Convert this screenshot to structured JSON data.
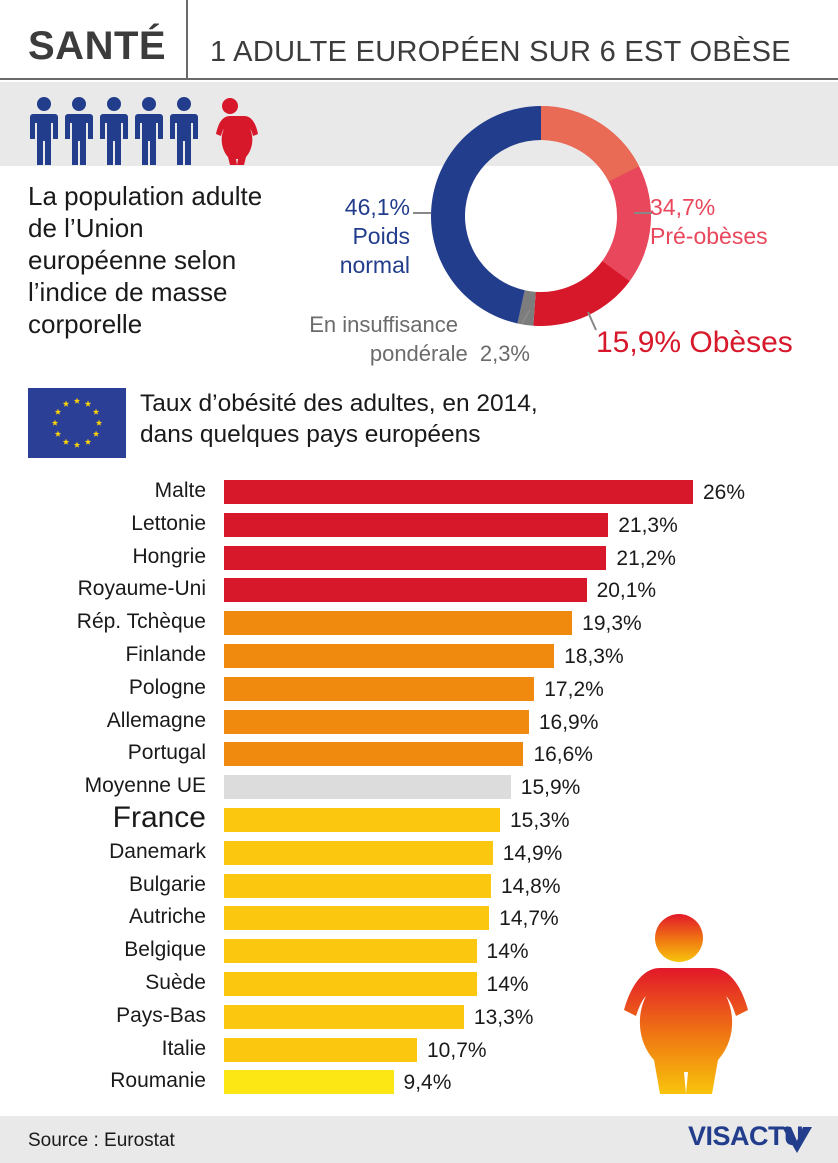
{
  "header": {
    "category": "SANTÉ",
    "title": "1 ADULTE EUROPÉEN SUR 6 EST OBÈSE"
  },
  "population": {
    "intro": "La population adulte de l’Union européenne selon l’indice de masse corporelle",
    "normal_pct": "46,1%",
    "normal_label": "Poids normal",
    "pre_pct": "34,7%",
    "pre_label": "Pré-obèses",
    "under_label": "En insuffisance",
    "under_label2": "pondérale",
    "under_pct": "2,3%",
    "obese_pct": "15,9",
    "obese_label": "% Obèses"
  },
  "bars_section": {
    "title_line1": "Taux d’obésité des adultes, en 2014,",
    "title_line2": "dans quelques pays européens"
  },
  "colors": {
    "normal": "#223d8c",
    "pre_obese": "#e8475c",
    "pre_obese_top": "#e96a55",
    "obese": "#d7182a",
    "under": "#7d7d7d",
    "red": "#d7182a",
    "orange": "#ef8a0e",
    "gold": "#fbc70f",
    "yellow": "#fce714",
    "avg": "#dcdcdc"
  },
  "chart_data": [
    {
      "type": "pie",
      "title": "La population adulte de l’Union européenne selon l’indice de masse corporelle",
      "categories": [
        "Poids normal",
        "Pré-obèses",
        "Obèses",
        "En insuffisance pondérale"
      ],
      "values": [
        46.1,
        34.7,
        15.9,
        2.3
      ],
      "donut": true
    },
    {
      "type": "bar",
      "orientation": "horizontal",
      "title": "Taux d’obésité des adultes, en 2014, dans quelques pays européens",
      "categories": [
        "Malte",
        "Lettonie",
        "Hongrie",
        "Royaume-Uni",
        "Rép. Tchèque",
        "Finlande",
        "Pologne",
        "Allemagne",
        "Portugal",
        "Moyenne UE",
        "France",
        "Danemark",
        "Bulgarie",
        "Autriche",
        "Belgique",
        "Suède",
        "Pays-Bas",
        "Italie",
        "Roumanie"
      ],
      "values": [
        26,
        21.3,
        21.2,
        20.1,
        19.3,
        18.3,
        17.2,
        16.9,
        16.6,
        15.9,
        15.3,
        14.9,
        14.8,
        14.7,
        14,
        14,
        13.3,
        10.7,
        9.4
      ],
      "value_labels": [
        "26%",
        "21,3%",
        "21,2%",
        "20,1%",
        "19,3%",
        "18,3%",
        "17,2%",
        "16,9%",
        "16,6%",
        "15,9%",
        "15,3%",
        "14,9%",
        "14,8%",
        "14,7%",
        "14%",
        "14%",
        "13,3%",
        "10,7%",
        "9,4%"
      ],
      "color_groups": [
        "red",
        "red",
        "red",
        "red",
        "orange",
        "orange",
        "orange",
        "orange",
        "orange",
        "avg",
        "gold",
        "gold",
        "gold",
        "gold",
        "gold",
        "gold",
        "gold",
        "gold",
        "yellow"
      ],
      "xlim": [
        0,
        26
      ],
      "xlabel": "",
      "ylabel": ""
    }
  ],
  "footer": {
    "source": "Source : Eurostat",
    "logo": "VISACTU"
  }
}
